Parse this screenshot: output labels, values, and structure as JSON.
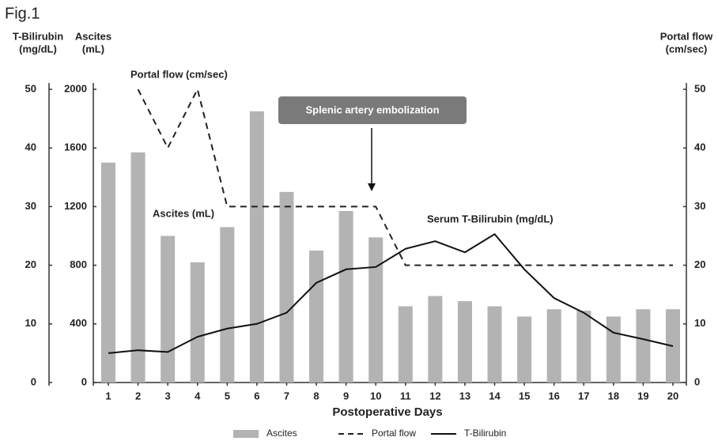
{
  "chart_data": {
    "type": "bar-line",
    "figure_label": "Fig.1",
    "xlabel": "Postoperative Days",
    "categories": [
      "1",
      "2",
      "3",
      "4",
      "5",
      "6",
      "7",
      "8",
      "9",
      "10",
      "11",
      "12",
      "13",
      "14",
      "15",
      "16",
      "17",
      "18",
      "19",
      "20"
    ],
    "ylabel": [
      "Ascites",
      "(mL)"
    ],
    "ylim": [
      0,
      2000
    ],
    "yticks": [
      0,
      400,
      800,
      1200,
      1600,
      2000
    ],
    "y2label": [
      "Portal flow",
      "(cm/sec)"
    ],
    "y2lim": [
      0,
      50
    ],
    "y2ticks": [
      0,
      10,
      20,
      30,
      40,
      50
    ],
    "y3label": [
      "T-Bilirubin",
      "(mg/dL)"
    ],
    "y3lim": [
      0,
      50
    ],
    "y3ticks": [
      0,
      10,
      20,
      30,
      40,
      50
    ],
    "series": [
      {
        "name": "Ascites",
        "type": "bar",
        "axis": "y",
        "color": "#b3b3b3",
        "values": [
          1500,
          1570,
          1000,
          820,
          1060,
          1850,
          1300,
          900,
          1170,
          990,
          520,
          590,
          555,
          520,
          450,
          500,
          490,
          450,
          500,
          500
        ]
      },
      {
        "name": "Portal flow",
        "type": "line",
        "dash": true,
        "axis": "y2",
        "color": "#222222",
        "values": [
          null,
          50,
          40,
          50,
          30,
          30,
          30,
          30,
          30,
          30,
          20,
          20,
          20,
          20,
          20,
          20,
          20,
          20,
          20,
          20
        ]
      },
      {
        "name": "T-Bilirubin",
        "type": "line",
        "dash": false,
        "axis": "y3",
        "color": "#111111",
        "values": [
          5,
          5.5,
          5.2,
          7.8,
          9.2,
          10,
          11.9,
          17,
          19.3,
          19.7,
          22.8,
          24.1,
          22.2,
          25.3,
          19.3,
          14.4,
          11.9,
          8.5,
          7.4,
          6.2
        ]
      }
    ],
    "annotations": [
      "Portal flow (cm/sec)",
      "Ascites (mL)",
      "Serum T-Bilirubin (mg/dL)",
      "Splenic artery embolization"
    ],
    "legend": "bottom"
  }
}
